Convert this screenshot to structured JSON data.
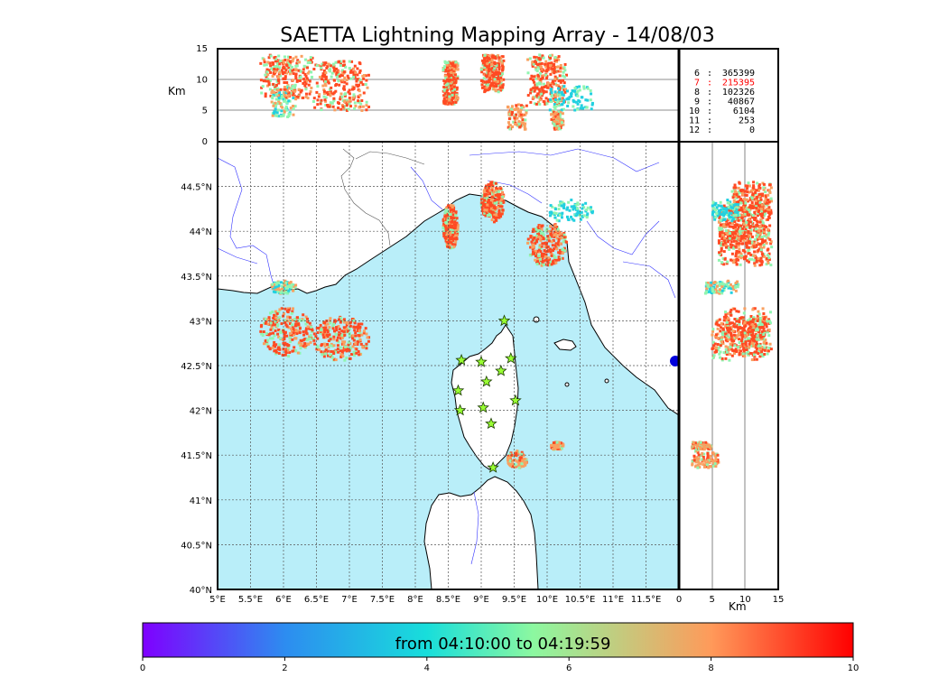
{
  "title": "SAETTA Lightning Mapping Array - 14/08/03",
  "altitude_unit": "Km",
  "colorbar_label": "from 04:10:00 to 04:19:59",
  "colors": {
    "sea": "#b9eef9",
    "land": "#ffffff",
    "river": "#3232ff",
    "border": "#555555",
    "star": "#99ff33",
    "flash_red": "#ff4a23",
    "flash_orange": "#f9a060",
    "flash_green": "#90f5b0",
    "flash_cyan": "#22d0e0",
    "highlight": "#ff0000"
  },
  "legend": [
    {
      "hour": "6",
      "count": "365399",
      "highlight": false
    },
    {
      "hour": "7",
      "count": "215395",
      "highlight": true
    },
    {
      "hour": "8",
      "count": "102326",
      "highlight": false
    },
    {
      "hour": "9",
      "count": "40867",
      "highlight": false
    },
    {
      "hour": "10",
      "count": "6104",
      "highlight": false
    },
    {
      "hour": "11",
      "count": "253",
      "highlight": false
    },
    {
      "hour": "12",
      "count": "0",
      "highlight": false
    }
  ],
  "chart_data": {
    "type": "scatter",
    "map_extent": {
      "lon": [
        5,
        12
      ],
      "lat": [
        40,
        45
      ]
    },
    "x_ticks": [
      "5°E",
      "5.5°E",
      "6°E",
      "6.5°E",
      "7°E",
      "7.5°E",
      "8°E",
      "8.5°E",
      "9°E",
      "9.5°E",
      "10°E",
      "10.5°E",
      "11°E",
      "11.5°E"
    ],
    "y_ticks": [
      "40°N",
      "40.5°N",
      "41°N",
      "41.5°N",
      "42°N",
      "42.5°N",
      "43°N",
      "43.5°N",
      "44°N",
      "44.5°N"
    ],
    "altitude_ticks": [
      "0",
      "5",
      "10",
      "15"
    ],
    "altitude_range": [
      0,
      15
    ],
    "colorbar_ticks": [
      "0",
      "2",
      "4",
      "6",
      "8",
      "10"
    ],
    "colorbar_range": [
      0,
      10
    ],
    "stations": [
      {
        "lon": 9.35,
        "lat": 43.0
      },
      {
        "lon": 8.7,
        "lat": 42.56
      },
      {
        "lon": 9.0,
        "lat": 42.54
      },
      {
        "lon": 9.45,
        "lat": 42.58
      },
      {
        "lon": 9.3,
        "lat": 42.44
      },
      {
        "lon": 9.08,
        "lat": 42.32
      },
      {
        "lon": 8.65,
        "lat": 42.22
      },
      {
        "lon": 9.52,
        "lat": 42.11
      },
      {
        "lon": 8.68,
        "lat": 42.0
      },
      {
        "lon": 9.03,
        "lat": 42.03
      },
      {
        "lon": 9.15,
        "lat": 41.85
      },
      {
        "lon": 9.18,
        "lat": 41.36
      }
    ],
    "clusters": [
      {
        "lon": [
          5.65,
          6.45
        ],
        "lat": [
          42.6,
          43.15
        ],
        "alt": [
          7,
          14
        ],
        "color": "red"
      },
      {
        "lon": [
          6.45,
          7.3
        ],
        "lat": [
          42.55,
          43.05
        ],
        "alt": [
          5,
          13
        ],
        "color": "red"
      },
      {
        "lon": [
          8.42,
          8.65
        ],
        "lat": [
          43.8,
          44.3
        ],
        "alt": [
          6,
          13
        ],
        "color": "red"
      },
      {
        "lon": [
          9.0,
          9.35
        ],
        "lat": [
          44.1,
          44.55
        ],
        "alt": [
          8,
          14
        ],
        "color": "red"
      },
      {
        "lon": [
          9.7,
          10.3
        ],
        "lat": [
          43.6,
          44.1
        ],
        "alt": [
          6,
          14
        ],
        "color": "red"
      },
      {
        "lon": [
          10.0,
          10.7
        ],
        "lat": [
          44.1,
          44.35
        ],
        "alt": [
          5,
          9
        ],
        "color": "cyan"
      },
      {
        "lon": [
          5.8,
          6.2
        ],
        "lat": [
          43.3,
          43.45
        ],
        "alt": [
          4,
          9
        ],
        "color": "green"
      },
      {
        "lon": [
          9.4,
          9.7
        ],
        "lat": [
          41.35,
          41.55
        ],
        "alt": [
          2,
          6
        ],
        "color": "orange"
      },
      {
        "lon": [
          10.05,
          10.25
        ],
        "lat": [
          41.55,
          41.65
        ],
        "alt": [
          2,
          5
        ],
        "color": "orange"
      }
    ]
  }
}
